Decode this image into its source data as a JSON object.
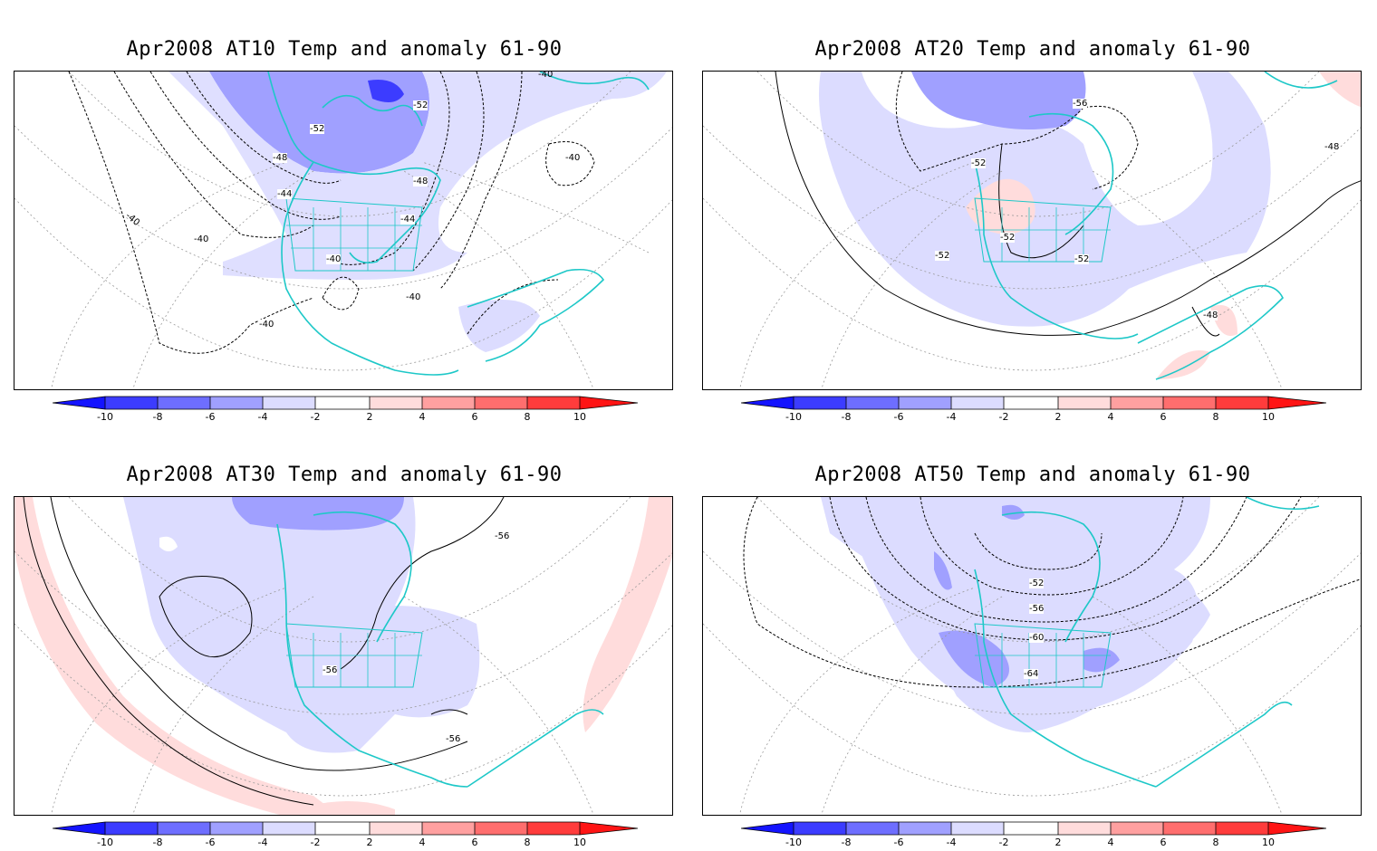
{
  "panels": [
    {
      "id": "at10",
      "title": "Apr2008 AT10 Temp and anomaly 61-90",
      "contour_labels": [
        "-40",
        "-52",
        "-52",
        "-48",
        "-44",
        "-48",
        "-44",
        "-40",
        "-40",
        "-40",
        "-40",
        "-40",
        "-40"
      ]
    },
    {
      "id": "at20",
      "title": "Apr2008 AT20 Temp and anomaly 61-90",
      "contour_labels": [
        "-56",
        "-52",
        "-52",
        "-52",
        "-52",
        "-48",
        "-48"
      ]
    },
    {
      "id": "at30",
      "title": "Apr2008 AT30 Temp and anomaly 61-90",
      "contour_labels": [
        "-56",
        "-56",
        "-56"
      ]
    },
    {
      "id": "at50",
      "title": "Apr2008 AT50 Temp and anomaly 61-90",
      "contour_labels": [
        "-52",
        "-56",
        "-60",
        "-64"
      ]
    }
  ],
  "colorbar": {
    "ticks": [
      "-10",
      "-8",
      "-6",
      "-4",
      "-2",
      "2",
      "4",
      "6",
      "8",
      "10"
    ],
    "colors": [
      "#1414ff",
      "#3c3cff",
      "#6e6eff",
      "#a0a0ff",
      "#dcdcff",
      "#ffffff",
      "#ffdcdc",
      "#ffa0a0",
      "#ff6e6e",
      "#ff3c3c",
      "#ff1414"
    ]
  },
  "colors": {
    "coastline": "#1ec8c8",
    "anomaly_light_blue": "#dcdcff",
    "anomaly_mid_blue": "#a0a0ff",
    "anomaly_dark_blue": "#3c3cff",
    "anomaly_light_red": "#ffdcdc"
  }
}
